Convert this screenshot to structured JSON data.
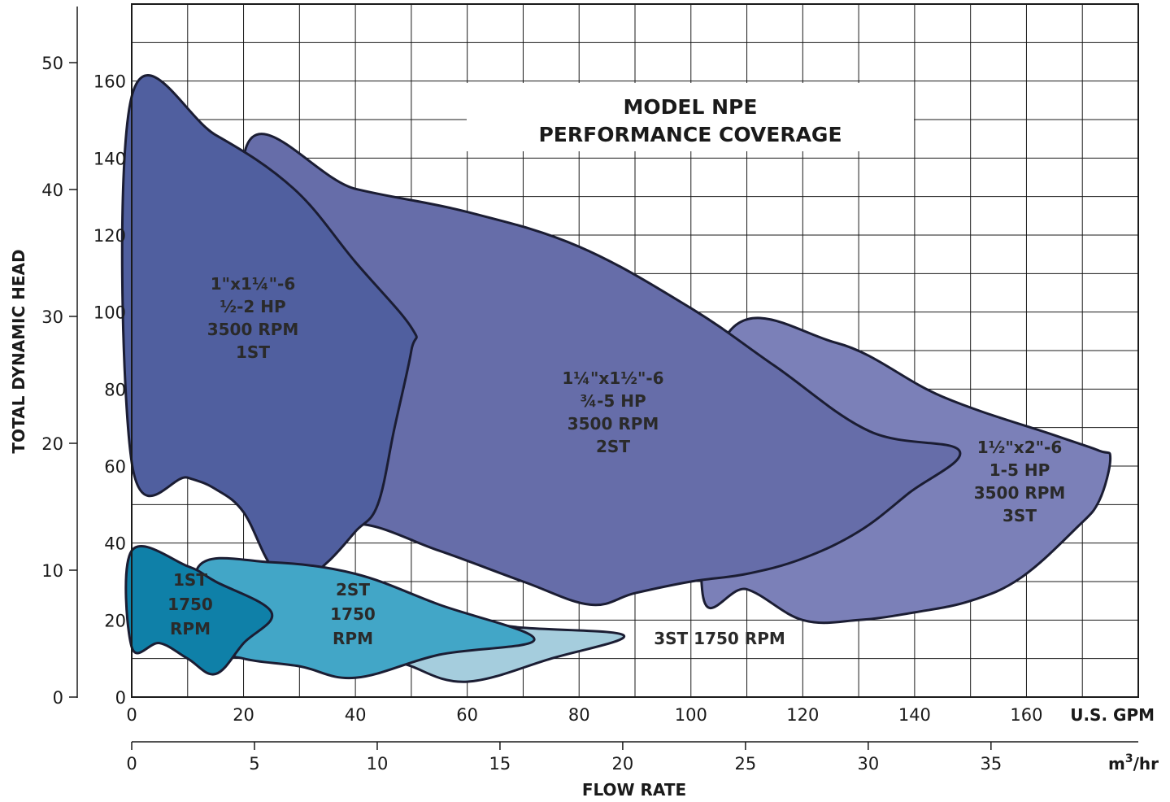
{
  "chart_data": {
    "type": "area",
    "title": "MODEL NPE\nPERFORMANCE COVERAGE",
    "xlabel": "FLOW RATE",
    "ylabel": "TOTAL DYNAMIC HEAD",
    "x_primary": {
      "unit": "U.S. GPM",
      "ticks": [
        0,
        20,
        40,
        60,
        80,
        100,
        120,
        140,
        160
      ],
      "range": [
        0,
        180
      ]
    },
    "x_secondary": {
      "unit": "m3/hr",
      "ticks": [
        0,
        5,
        10,
        15,
        20,
        25,
        30,
        35
      ],
      "range": [
        0,
        41
      ]
    },
    "y_left": {
      "unit": "",
      "ticks": [
        0,
        10,
        20,
        30,
        40,
        50
      ]
    },
    "y_inner": {
      "unit": "",
      "ticks": [
        0,
        20,
        40,
        60,
        80,
        100,
        120,
        140,
        160
      ],
      "range": [
        0,
        180
      ]
    },
    "grid": true,
    "series": [
      {
        "name": "1 1/2\"x2\"-6 1-5 HP 3500 RPM 3ST",
        "label_lines": [
          "1½\"x2\"-6",
          "1-5 HP",
          "3500 RPM",
          "3ST"
        ],
        "color": "#7b80b8",
        "boundary": [
          [
            126,
            92
          ],
          [
            145,
            78
          ],
          [
            165,
            68
          ],
          [
            173,
            64
          ],
          [
            175,
            62
          ],
          [
            173,
            51
          ],
          [
            169,
            44
          ],
          [
            159,
            31
          ],
          [
            150,
            25
          ],
          [
            140,
            22
          ],
          [
            130,
            20
          ],
          [
            120,
            20
          ],
          [
            110,
            28
          ],
          [
            102,
            28
          ],
          [
            106,
            93
          ],
          [
            126,
            92
          ]
        ]
      },
      {
        "name": "1 1/4\"x1 1/2\"-6 3/4-5 HP 3500 RPM 2ST",
        "label_lines": [
          "1¼\"x1½\"-6",
          "¾-5 HP",
          "3500 RPM",
          "2ST"
        ],
        "color": "#666da9",
        "boundary": [
          [
            20,
            140
          ],
          [
            40,
            132
          ],
          [
            60,
            126
          ],
          [
            80,
            117
          ],
          [
            100,
            101
          ],
          [
            115,
            86
          ],
          [
            132,
            69
          ],
          [
            148,
            64
          ],
          [
            139,
            53
          ],
          [
            130,
            43
          ],
          [
            120,
            36
          ],
          [
            110,
            32
          ],
          [
            100,
            30
          ],
          [
            90,
            27
          ],
          [
            82,
            24
          ],
          [
            70,
            30
          ],
          [
            55,
            38
          ],
          [
            40,
            45
          ],
          [
            30,
            38
          ],
          [
            20,
            140
          ]
        ]
      },
      {
        "name": "1\"x1 1/4\"-6 1/2-2 HP 3500 RPM 1ST",
        "label_lines": [
          "1\"x1¼\"-6",
          "½-2 HP",
          "3500 RPM",
          "1ST"
        ],
        "color": "#505f9f",
        "boundary": [
          [
            0,
            156
          ],
          [
            15,
            146
          ],
          [
            29,
            132
          ],
          [
            40,
            113
          ],
          [
            50,
            96
          ],
          [
            50,
            90
          ],
          [
            47,
            70
          ],
          [
            44,
            50
          ],
          [
            40,
            43
          ],
          [
            35,
            35
          ],
          [
            30,
            30
          ],
          [
            25,
            34
          ],
          [
            20,
            48
          ],
          [
            15,
            54
          ],
          [
            10,
            57
          ],
          [
            0,
            61
          ],
          [
            0,
            156
          ]
        ]
      },
      {
        "name": "3ST 1750 RPM",
        "label_lines": [
          "3ST 1750 RPM"
        ],
        "color": "#a5cddd",
        "boundary": [
          [
            55,
            20
          ],
          [
            70,
            18
          ],
          [
            88,
            16
          ],
          [
            75,
            10
          ],
          [
            60,
            4
          ],
          [
            50,
            8
          ],
          [
            45,
            12
          ],
          [
            55,
            20
          ]
        ]
      },
      {
        "name": "2ST 1750 RPM",
        "label_lines": [
          "2ST",
          "1750",
          "RPM"
        ],
        "color": "#42a6c7",
        "boundary": [
          [
            12,
            34
          ],
          [
            25,
            35
          ],
          [
            40,
            32
          ],
          [
            55,
            24
          ],
          [
            72,
            15
          ],
          [
            55,
            11
          ],
          [
            40,
            5
          ],
          [
            30,
            8
          ],
          [
            20,
            10
          ],
          [
            14,
            14
          ],
          [
            12,
            34
          ]
        ]
      },
      {
        "name": "1ST 1750 RPM",
        "label_lines": [
          "1ST",
          "1750",
          "RPM"
        ],
        "color": "#0f80a8",
        "boundary": [
          [
            0,
            38
          ],
          [
            10,
            34
          ],
          [
            15,
            30
          ],
          [
            25,
            22
          ],
          [
            20,
            14
          ],
          [
            15,
            6
          ],
          [
            10,
            10
          ],
          [
            5,
            14
          ],
          [
            0,
            13
          ],
          [
            0,
            38
          ]
        ]
      }
    ]
  }
}
